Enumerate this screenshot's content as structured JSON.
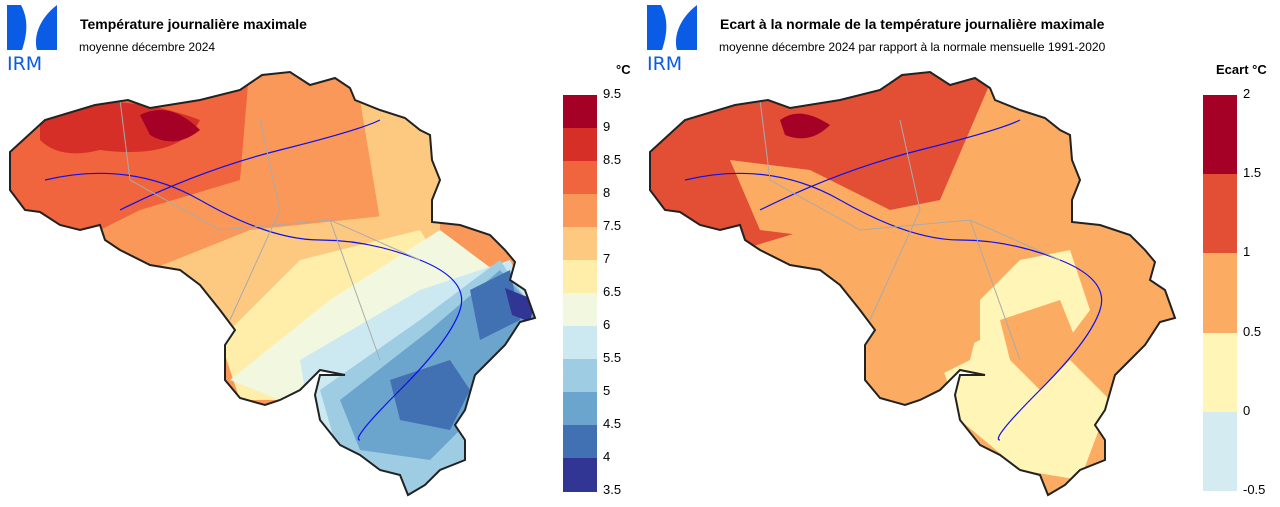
{
  "logo_text": "IRM",
  "logo_color": "#0a5ce6",
  "left": {
    "title": "Température journalière maximale",
    "subtitle": "moyenne décembre 2024",
    "legend": {
      "unit": "°C",
      "ticks": [
        "9.5",
        "9",
        "8.5",
        "8",
        "7.5",
        "7",
        "6.5",
        "6",
        "5.5",
        "5",
        "4.5",
        "4",
        "3.5"
      ],
      "colors": [
        "#a50026",
        "#d62f27",
        "#f0643e",
        "#f99858",
        "#fdc980",
        "#feeeaa",
        "#f1f8df",
        "#cce9f2",
        "#9ecde3",
        "#6ba5cd",
        "#4170b3",
        "#313695"
      ]
    }
  },
  "right": {
    "title": "Ecart à la normale de la température journalière maximale",
    "subtitle": "moyenne décembre 2024 par rapport à la normale mensuelle 1991-2020",
    "legend": {
      "unit": "Ecart °C",
      "ticks": [
        "2",
        "1.5",
        "1",
        "0.5",
        "0",
        "-0.5"
      ],
      "colors": [
        "#a50026",
        "#e34f35",
        "#fbac62",
        "#fef5b6",
        "#d4ebf2"
      ]
    }
  }
}
